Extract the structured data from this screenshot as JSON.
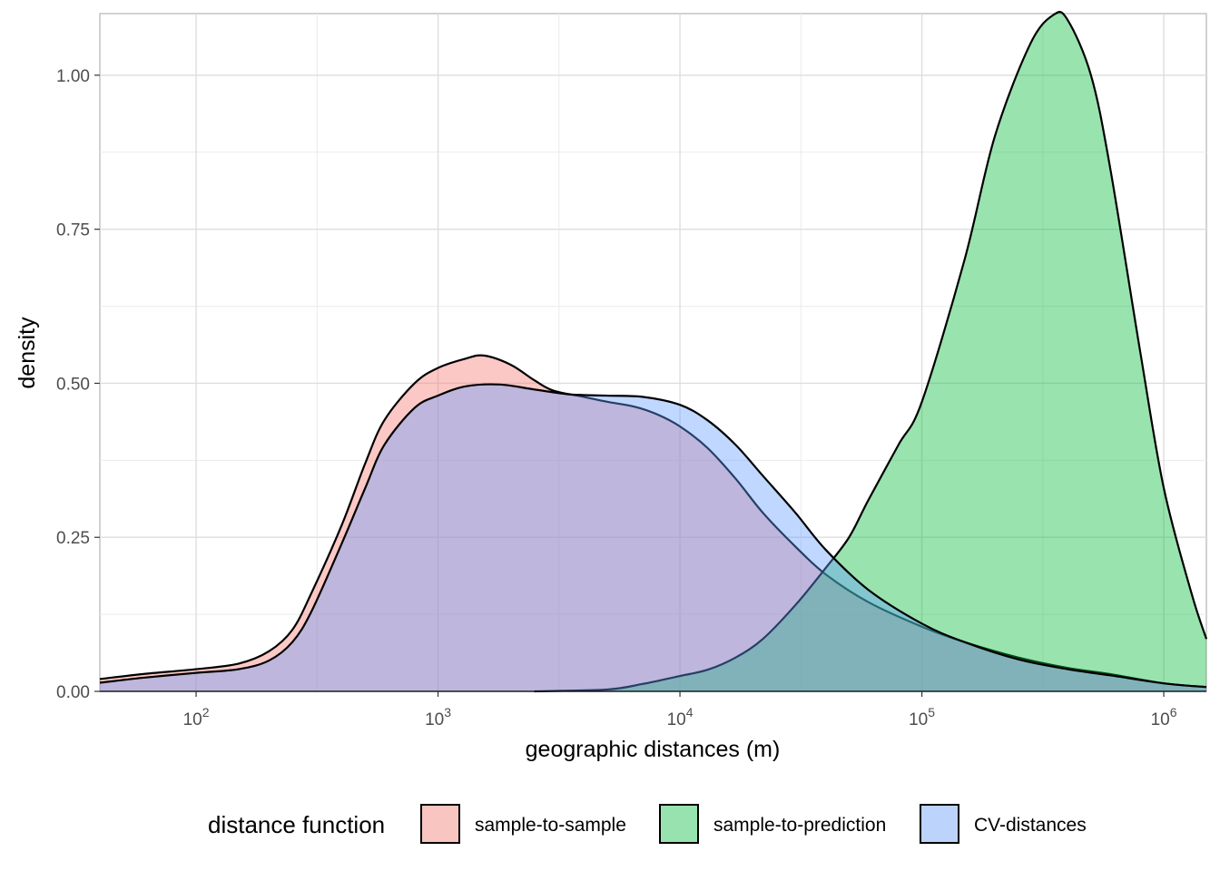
{
  "chart_data": {
    "type": "area",
    "chart_kind": "density",
    "xlabel": "geographic distances (m)",
    "ylabel": "density",
    "x_scale": "log10",
    "xlim": [
      40,
      1500000
    ],
    "ylim": [
      0,
      1.1
    ],
    "x_ticks": [
      {
        "value": 100,
        "base": "10",
        "exp": "2"
      },
      {
        "value": 1000,
        "base": "10",
        "exp": "3"
      },
      {
        "value": 10000,
        "base": "10",
        "exp": "4"
      },
      {
        "value": 100000,
        "base": "10",
        "exp": "5"
      },
      {
        "value": 1000000,
        "base": "10",
        "exp": "6"
      }
    ],
    "y_ticks": [
      "0.00",
      "0.25",
      "0.50",
      "0.75",
      "1.00"
    ],
    "y_tick_values": [
      0,
      0.25,
      0.5,
      0.75,
      1.0
    ],
    "grid": true,
    "legend": {
      "title": "distance function",
      "placement": "bottom",
      "entries": [
        "sample-to-sample",
        "sample-to-prediction",
        "CV-distances"
      ]
    },
    "series": [
      {
        "name": "sample-to-sample",
        "color": "#F8766D",
        "fill": "#f8c5c0",
        "points": [
          [
            40,
            0.02
          ],
          [
            60,
            0.028
          ],
          [
            100,
            0.036
          ],
          [
            150,
            0.045
          ],
          [
            200,
            0.065
          ],
          [
            250,
            0.1
          ],
          [
            300,
            0.16
          ],
          [
            400,
            0.27
          ],
          [
            500,
            0.37
          ],
          [
            600,
            0.44
          ],
          [
            800,
            0.5
          ],
          [
            1000,
            0.525
          ],
          [
            1300,
            0.54
          ],
          [
            1550,
            0.545
          ],
          [
            2000,
            0.53
          ],
          [
            2500,
            0.505
          ],
          [
            3000,
            0.488
          ],
          [
            4000,
            0.478
          ],
          [
            5000,
            0.47
          ],
          [
            6500,
            0.462
          ],
          [
            8000,
            0.45
          ],
          [
            10000,
            0.43
          ],
          [
            13000,
            0.395
          ],
          [
            17000,
            0.345
          ],
          [
            22000,
            0.29
          ],
          [
            30000,
            0.235
          ],
          [
            40000,
            0.19
          ],
          [
            60000,
            0.145
          ],
          [
            100000,
            0.105
          ],
          [
            150000,
            0.08
          ],
          [
            250000,
            0.055
          ],
          [
            400000,
            0.038
          ],
          [
            600000,
            0.028
          ],
          [
            1000000,
            0.013
          ],
          [
            1500000,
            0.007
          ]
        ]
      },
      {
        "name": "sample-to-prediction",
        "color": "#00BA38",
        "fill": "#98e2b0",
        "points": [
          [
            2500,
            0.0
          ],
          [
            5000,
            0.003
          ],
          [
            7000,
            0.012
          ],
          [
            10000,
            0.025
          ],
          [
            13000,
            0.035
          ],
          [
            17000,
            0.055
          ],
          [
            22000,
            0.085
          ],
          [
            30000,
            0.14
          ],
          [
            40000,
            0.2
          ],
          [
            50000,
            0.25
          ],
          [
            60000,
            0.31
          ],
          [
            80000,
            0.4
          ],
          [
            100000,
            0.47
          ],
          [
            150000,
            0.7
          ],
          [
            200000,
            0.9
          ],
          [
            280000,
            1.05
          ],
          [
            350000,
            1.098
          ],
          [
            400000,
            1.09
          ],
          [
            500000,
            1.0
          ],
          [
            600000,
            0.85
          ],
          [
            800000,
            0.55
          ],
          [
            1000000,
            0.33
          ],
          [
            1300000,
            0.16
          ],
          [
            1500000,
            0.085
          ]
        ]
      },
      {
        "name": "CV-distances",
        "color": "#619CFF",
        "fill": "#bcd3fc",
        "points": [
          [
            40,
            0.014
          ],
          [
            60,
            0.022
          ],
          [
            100,
            0.03
          ],
          [
            150,
            0.036
          ],
          [
            200,
            0.05
          ],
          [
            250,
            0.08
          ],
          [
            300,
            0.13
          ],
          [
            400,
            0.24
          ],
          [
            500,
            0.33
          ],
          [
            600,
            0.4
          ],
          [
            800,
            0.46
          ],
          [
            1000,
            0.48
          ],
          [
            1300,
            0.495
          ],
          [
            1800,
            0.498
          ],
          [
            2500,
            0.49
          ],
          [
            3500,
            0.482
          ],
          [
            5000,
            0.48
          ],
          [
            7000,
            0.478
          ],
          [
            10000,
            0.465
          ],
          [
            13000,
            0.44
          ],
          [
            17000,
            0.4
          ],
          [
            22000,
            0.35
          ],
          [
            30000,
            0.29
          ],
          [
            40000,
            0.23
          ],
          [
            60000,
            0.165
          ],
          [
            100000,
            0.11
          ],
          [
            150000,
            0.08
          ],
          [
            250000,
            0.052
          ],
          [
            400000,
            0.036
          ],
          [
            600000,
            0.026
          ],
          [
            1000000,
            0.013
          ],
          [
            1500000,
            0.007
          ]
        ]
      }
    ]
  }
}
